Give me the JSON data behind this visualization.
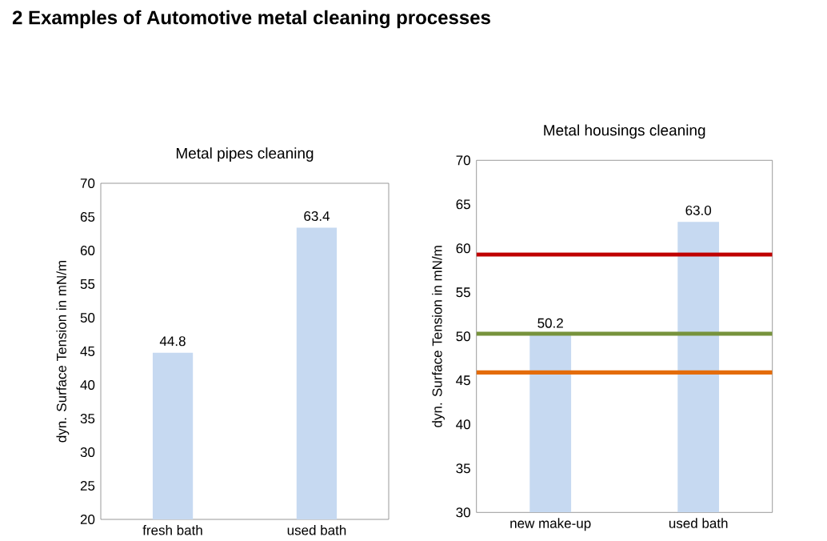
{
  "chart_data": [
    {
      "type": "bar",
      "title": "Metal pipes cleaning",
      "ylabel": "dyn. Surface Tension in mN/m",
      "annotations": [
        "2  Examples of Automotive metal cleaning processes"
      ],
      "categories": [
        "fresh bath",
        "used bath"
      ],
      "values": [
        44.8,
        63.4
      ],
      "value_labels": [
        "44.8",
        "63.4"
      ],
      "color": "#c6d9f1",
      "ylim": [
        20,
        70
      ],
      "yticks": [
        20,
        25,
        30,
        35,
        40,
        45,
        50,
        55,
        60,
        65,
        70
      ]
    },
    {
      "type": "bar",
      "title": "Metal housings cleaning",
      "ylabel": "dyn. Surface Tension in mN/m",
      "categories": [
        "new make-up",
        "used bath"
      ],
      "values": [
        50.2,
        63.0
      ],
      "value_labels": [
        "50.2",
        "63.0"
      ],
      "color": "#c6d9f1",
      "ylim": [
        30,
        70
      ],
      "yticks": [
        30,
        35,
        40,
        45,
        50,
        55,
        60,
        65,
        70
      ],
      "ref_lines": [
        {
          "axis": "y",
          "value": 59.3,
          "color": "#c00000"
        },
        {
          "axis": "y",
          "value": 50.3,
          "color": "#77933c"
        },
        {
          "axis": "y",
          "value": 45.9,
          "color": "#e46c0a"
        }
      ]
    }
  ]
}
